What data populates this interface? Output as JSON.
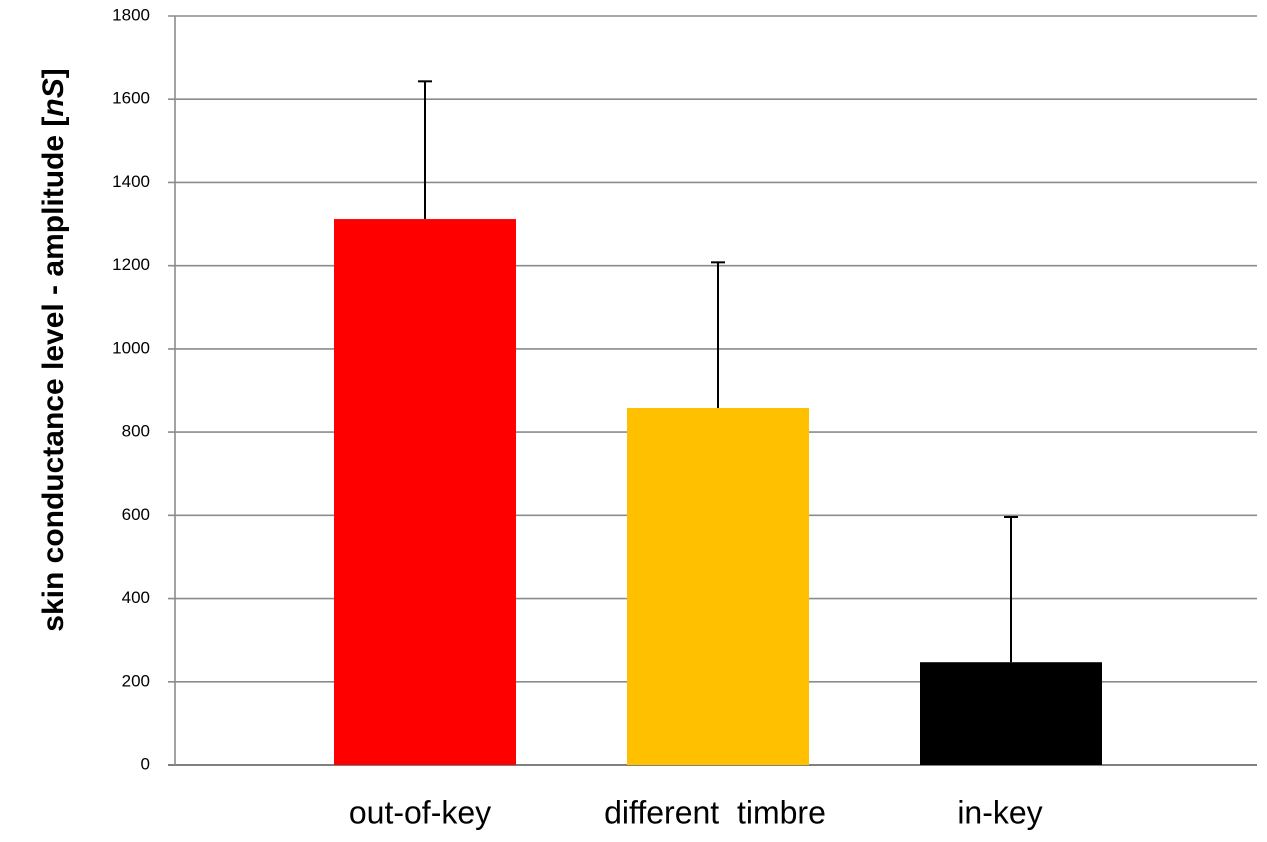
{
  "chart_data": {
    "type": "bar",
    "title": "",
    "xlabel": "",
    "ylabel": {
      "prefix": "skin conductance level - amplitude [",
      "unit": "nS",
      "suffix": "]"
    },
    "categories": [
      "out-of-key",
      "different  timbre",
      "in-key"
    ],
    "values": [
      1312,
      858,
      247
    ],
    "error_upper": [
      1643,
      1208,
      596
    ],
    "colors": [
      "#ff0000",
      "#ffc000",
      "#000000"
    ],
    "ylim": [
      0,
      1800
    ],
    "yticks": [
      0,
      200,
      400,
      600,
      800,
      1000,
      1200,
      1400,
      1600,
      1800
    ],
    "grid": true,
    "legend": "none"
  }
}
